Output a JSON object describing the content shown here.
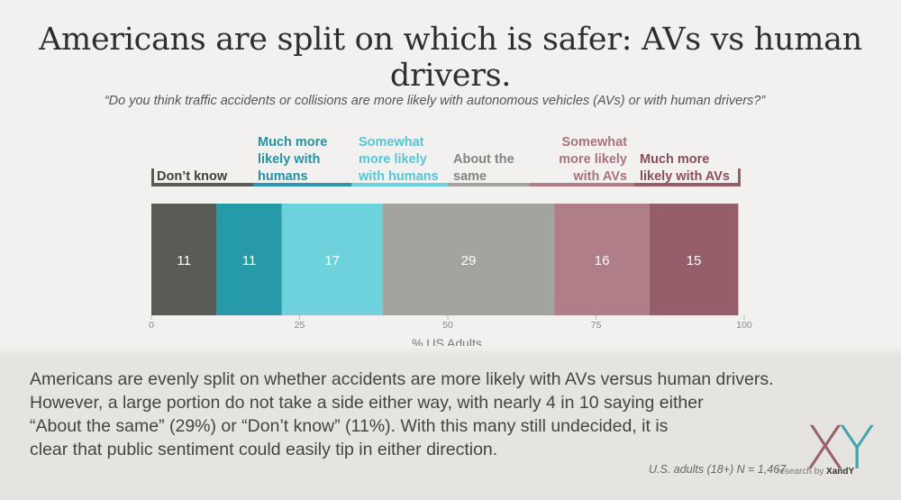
{
  "title": "Americans are split on which is safer: AVs vs human drivers.",
  "subtitle": "“Do you think traffic accidents or collisions are more likely with autonomous vehicles (AVs) or with human drivers?”",
  "chart_data": {
    "type": "bar",
    "orientation": "horizontal-stacked",
    "categories": [
      "Don’t know",
      "Much more likely with humans",
      "Somewhat more likely with humans",
      "About the same",
      "Somewhat more likely with AVs",
      "Much more likely with AVs"
    ],
    "values": [
      11,
      11,
      17,
      29,
      16,
      15
    ],
    "legend_lines": [
      [
        "Don’t know"
      ],
      [
        "Much more",
        "likely with",
        "humans"
      ],
      [
        "Somewhat",
        "more likely",
        "with humans"
      ],
      [
        "About the",
        "same"
      ],
      [
        "Somewhat",
        "more likely",
        "with AVs"
      ],
      [
        "Much more",
        "likely with AVs"
      ]
    ],
    "colors": [
      "#585c55",
      "#279aaa",
      "#6dd2dc",
      "#a3a4a0",
      "#b07e86",
      "#955e68"
    ],
    "label_colors": [
      "#3e403c",
      "#2393a3",
      "#55c6d3",
      "#838581",
      "#a8737d",
      "#8a4e5b"
    ],
    "xlabel": "% US Adults",
    "ylabel": "",
    "xlim": [
      0,
      100
    ],
    "xticks": [
      0,
      25,
      50,
      75,
      100
    ],
    "grid": false
  },
  "summary_lines": [
    "Americans are evenly split on whether accidents are more likely with AVs versus human drivers.",
    "However, a large portion do not take a side either way, with nearly 4 in 10 saying either",
    "“About the same” (29%) or “Don’t know” (11%). With this many still undecided, it is",
    "clear that public sentiment could easily tip in either direction."
  ],
  "sample_note": "U.S. adults (18+) N = 1,467",
  "logo": {
    "mark": "XY",
    "tagline_prefix": "research by ",
    "brand": "XandY",
    "colors": [
      "#8c4b57",
      "#2a98a6"
    ]
  }
}
